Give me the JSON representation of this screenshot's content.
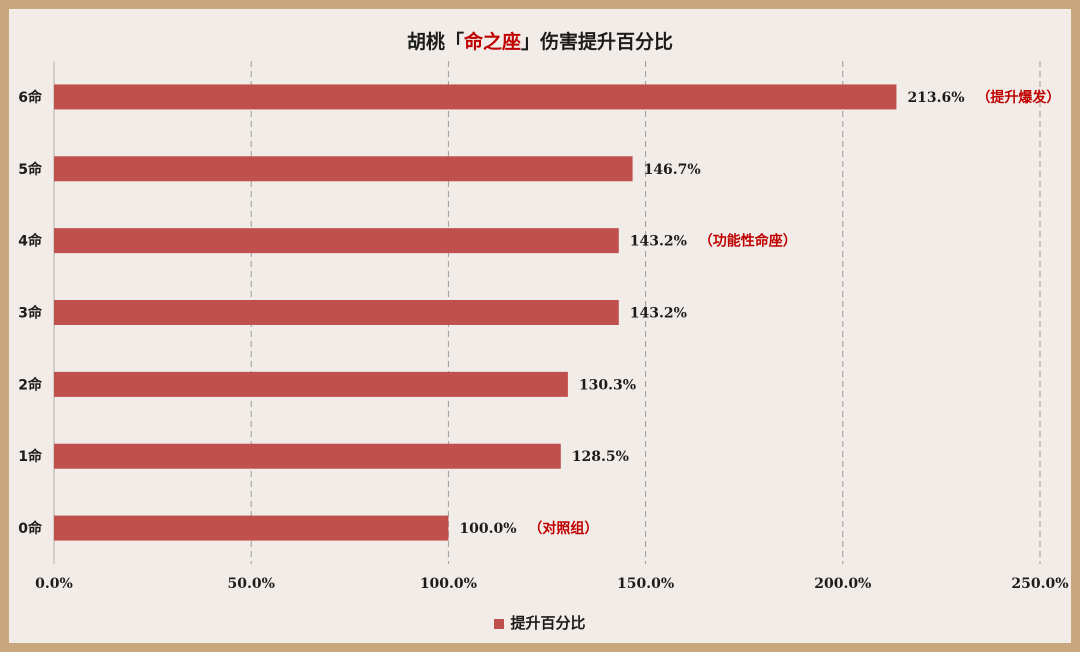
{
  "chart_data": {
    "type": "bar",
    "orientation": "horizontal",
    "title": {
      "prefix": "胡桃「",
      "highlight": "命之座",
      "suffix": "」伤害提升百分比"
    },
    "categories": [
      "6命",
      "5命",
      "4命",
      "3命",
      "2命",
      "1命",
      "0命"
    ],
    "series": [
      {
        "name": "提升百分比",
        "values": [
          213.6,
          146.7,
          143.2,
          143.2,
          130.3,
          128.5,
          100.0
        ]
      }
    ],
    "value_labels": [
      "213.6%",
      "146.7%",
      "143.2%",
      "143.2%",
      "130.3%",
      "128.5%",
      "100.0%"
    ],
    "annotations": [
      "（提升爆发）",
      "",
      "（功能性命座）",
      "",
      "",
      "",
      "（对照组）"
    ],
    "xlim": [
      0,
      250
    ],
    "x_ticks": [
      0,
      50,
      100,
      150,
      200,
      250
    ],
    "x_tick_labels": [
      "0.0%",
      "50.0%",
      "100.0%",
      "150.0%",
      "200.0%",
      "250.0%"
    ],
    "grid": "vertical dashed",
    "legend_position": "bottom",
    "colors": {
      "bar": "#c0504d",
      "annotation": "#c00000",
      "grid": "#9a9a9a",
      "frame": "#c9a77c",
      "background": "#f2ece8"
    }
  }
}
